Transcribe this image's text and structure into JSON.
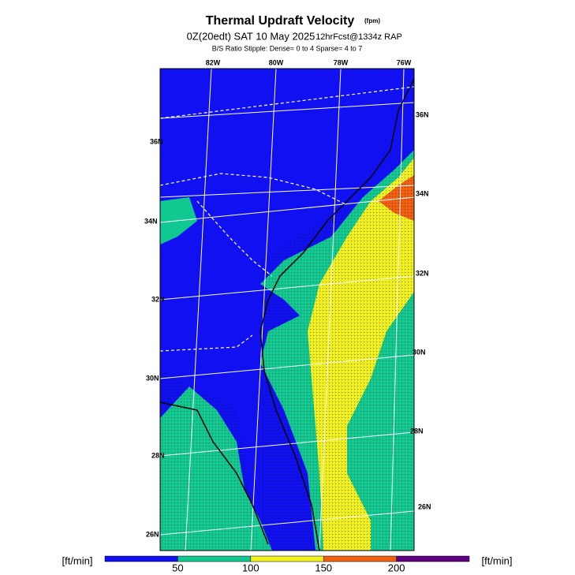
{
  "header": {
    "title": "Thermal Updraft Velocity",
    "title_unit": "(fpm)",
    "valid": "0Z(20edt) SAT 10 May 2025",
    "run": "12hrFcst@1334z RAP",
    "stipple": "B/S Ratio Stipple:  Dense= 0 to 4  Sparse= 4 to 7"
  },
  "map": {
    "lon_labels": [
      "82W",
      "80W",
      "78W",
      "76W"
    ],
    "lat_labels_right": [
      "36N",
      "34N",
      "32N",
      "30N",
      "28N",
      "26N"
    ],
    "lat_labels_left": [
      "36N",
      "34N",
      "32N",
      "30N",
      "28N",
      "26N"
    ]
  },
  "colorbar": {
    "unit_left": "[ft/min]",
    "unit_right": "[ft/min]",
    "lim": [
      0,
      250
    ],
    "colors": [
      "#1010f0",
      "#10c890",
      "#f0f020",
      "#f06010",
      "#600080"
    ],
    "ticks": [
      50,
      100,
      150,
      200
    ]
  }
}
